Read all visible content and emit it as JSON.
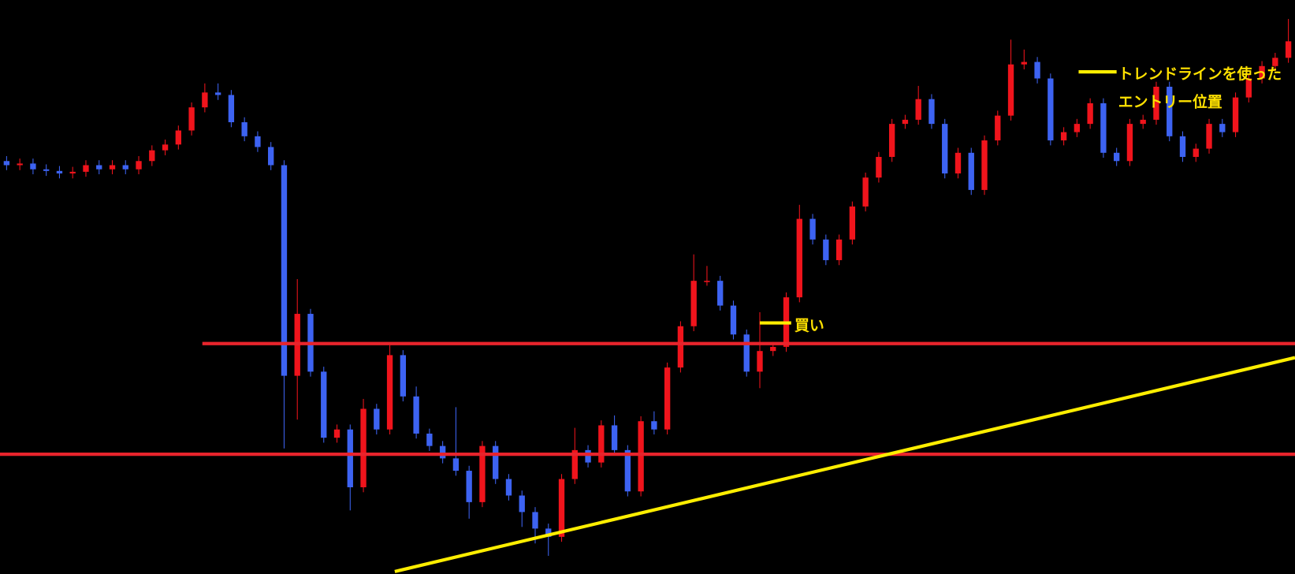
{
  "chart_data": {
    "type": "candlestick",
    "up_color": "#f0141c",
    "down_color": "#3d63f2",
    "level_color": "#e8242c",
    "open": [
      533,
      528,
      530,
      523,
      521,
      518,
      520,
      528,
      523,
      528,
      523,
      533,
      546,
      553,
      570,
      598,
      616,
      613,
      580,
      563,
      550,
      528,
      273,
      348,
      278,
      198,
      208,
      138,
      233,
      208,
      298,
      248,
      203,
      188,
      173,
      158,
      120,
      188,
      148,
      128,
      108,
      88,
      78,
      148,
      183,
      168,
      213,
      183,
      133,
      218,
      208,
      283,
      333,
      388,
      388,
      358,
      323,
      278,
      303,
      308,
      368,
      463,
      438,
      413,
      438,
      478,
      513,
      538,
      578,
      583,
      608,
      578,
      518,
      543,
      498,
      558,
      588,
      650,
      653,
      633,
      558,
      568,
      578,
      603,
      543,
      533,
      578,
      583,
      623,
      563,
      538,
      548,
      578,
      568,
      610,
      633,
      648,
      658
    ],
    "high": [
      539,
      536,
      536,
      529,
      527,
      526,
      534,
      534,
      534,
      534,
      539,
      552,
      559,
      576,
      604,
      627,
      627,
      619,
      586,
      569,
      556,
      534,
      390,
      354,
      284,
      214,
      214,
      245,
      239,
      310,
      304,
      260,
      209,
      194,
      235,
      164,
      194,
      194,
      154,
      134,
      114,
      94,
      154,
      210,
      189,
      219,
      225,
      189,
      224,
      230,
      289,
      339,
      420,
      406,
      394,
      364,
      329,
      350,
      314,
      374,
      480,
      469,
      444,
      444,
      484,
      519,
      544,
      584,
      589,
      624,
      614,
      584,
      549,
      549,
      564,
      594,
      680,
      668,
      659,
      639,
      574,
      584,
      609,
      609,
      549,
      584,
      589,
      629,
      629,
      569,
      554,
      584,
      584,
      616,
      639,
      654,
      664,
      705
    ],
    "low": [
      522,
      522,
      517,
      515,
      512,
      512,
      514,
      517,
      517,
      517,
      517,
      527,
      540,
      547,
      564,
      592,
      607,
      574,
      557,
      544,
      522,
      185,
      220,
      272,
      192,
      192,
      110,
      132,
      202,
      202,
      242,
      197,
      182,
      167,
      152,
      100,
      114,
      142,
      122,
      90,
      70,
      55,
      72,
      142,
      162,
      162,
      177,
      127,
      127,
      202,
      202,
      277,
      327,
      382,
      352,
      317,
      272,
      258,
      297,
      302,
      362,
      432,
      407,
      407,
      432,
      472,
      507,
      532,
      572,
      577,
      572,
      512,
      512,
      492,
      492,
      552,
      582,
      644,
      627,
      552,
      552,
      562,
      572,
      537,
      527,
      527,
      572,
      577,
      557,
      532,
      532,
      542,
      562,
      562,
      604,
      627,
      642,
      652
    ],
    "close": [
      528,
      530,
      523,
      521,
      518,
      520,
      528,
      523,
      528,
      523,
      533,
      546,
      553,
      570,
      598,
      616,
      613,
      580,
      563,
      550,
      528,
      273,
      348,
      278,
      198,
      208,
      138,
      233,
      208,
      298,
      248,
      203,
      188,
      173,
      158,
      120,
      188,
      148,
      128,
      108,
      88,
      78,
      148,
      183,
      168,
      213,
      183,
      133,
      218,
      208,
      283,
      333,
      388,
      388,
      358,
      323,
      278,
      303,
      308,
      368,
      463,
      438,
      413,
      438,
      478,
      513,
      538,
      578,
      583,
      608,
      578,
      518,
      543,
      498,
      558,
      588,
      650,
      653,
      633,
      558,
      568,
      578,
      603,
      543,
      533,
      578,
      583,
      623,
      563,
      538,
      548,
      578,
      568,
      610,
      633,
      648,
      658,
      678
    ],
    "levels": [
      312,
      178
    ],
    "annotations": [
      "買い",
      "トレンドラインを使った",
      "エントリー位置"
    ]
  }
}
